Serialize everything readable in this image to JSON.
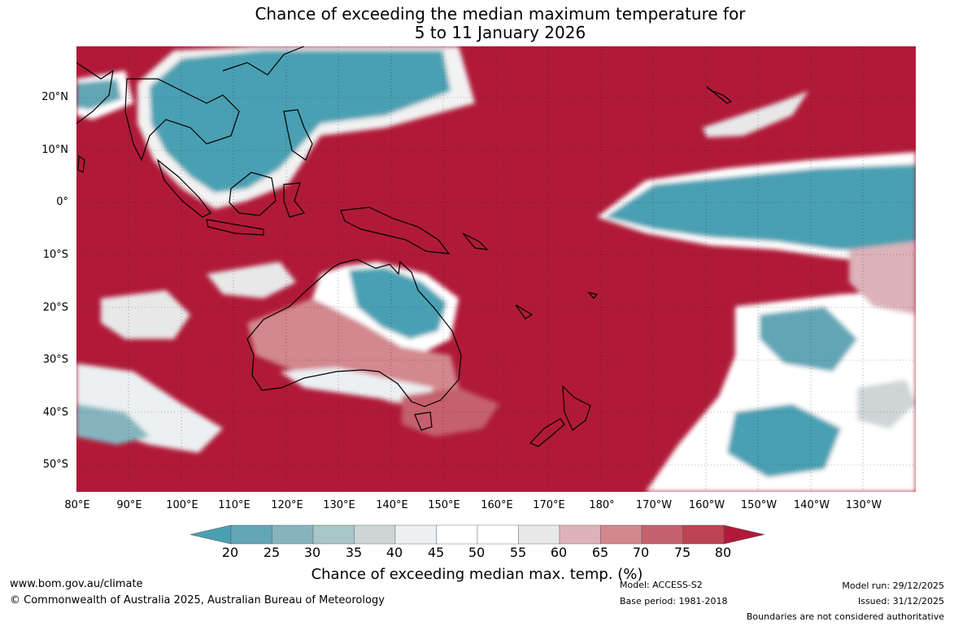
{
  "title": {
    "line1": "Chance of exceeding the median maximum temperature for",
    "line2": "5 to 11 January 2026"
  },
  "map": {
    "background_color": "#b01a38",
    "lat_ticks": [
      "20°N",
      "10°N",
      "0°",
      "10°S",
      "20°S",
      "30°S",
      "40°S",
      "50°S"
    ],
    "lon_ticks": [
      "80°E",
      "90°E",
      "100°E",
      "110°E",
      "120°E",
      "130°E",
      "140°E",
      "150°E",
      "160°E",
      "170°E",
      "180°",
      "170°W",
      "160°W",
      "150°W",
      "140°W",
      "130°W"
    ]
  },
  "colorbar": {
    "colors": [
      "#4aa0b2",
      "#62a6b6",
      "#84b5bf",
      "#a8c5c8",
      "#cdd5d7",
      "#ecf0f2",
      "#ffffff",
      "#ffffff",
      "#e8e8e8",
      "#ddb2b9",
      "#d3878f",
      "#c5616d",
      "#be4352",
      "#b01a38"
    ],
    "tick_labels": [
      "20",
      "25",
      "30",
      "35",
      "40",
      "45",
      "50",
      "55",
      "60",
      "65",
      "70",
      "75",
      "80"
    ],
    "label": "Chance of exceeding median max. temp. (%)"
  },
  "footer": {
    "website": "www.bom.gov.au/climate",
    "copyright": "© Commonwealth of Australia 2025, Australian Bureau of Meteorology",
    "model": "Model: ACCESS-S2",
    "base_period": "Base period: 1981-2018",
    "model_run": "Model run: 29/12/2025",
    "issued": "Issued: 31/12/2025",
    "boundaries": "Boundaries are not considered authoritative"
  }
}
